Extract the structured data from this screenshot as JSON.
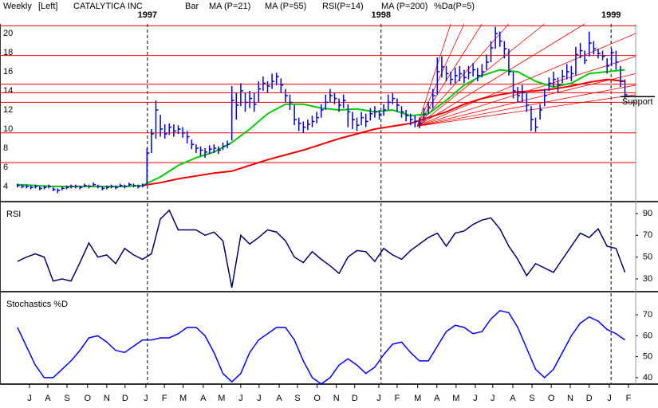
{
  "header": [
    {
      "text": "Weekly",
      "color": "#000000"
    },
    {
      "text": "[Left]",
      "color": "#000000"
    },
    {
      "text": "CATALYTICA INC",
      "color": "#000000"
    },
    {
      "text": "Bar",
      "color": "#0000cc"
    },
    {
      "text": "MA (P=21)",
      "color": "#00bb00"
    },
    {
      "text": "MA (P=55)",
      "color": "#ee0000"
    },
    {
      "text": "RSI(P=14)",
      "color": "#0000cc"
    },
    {
      "text": "MA (P=200)",
      "color": "#008800"
    },
    {
      "text": "%Da(P=5)",
      "color": "#0000cc"
    }
  ],
  "chart_data": [
    {
      "type": "ohlc",
      "xlim": [
        -3.9,
        138.4
      ],
      "ylim": [
        2.5,
        21
      ],
      "yticks": [
        4,
        6,
        8,
        10,
        12,
        14,
        16,
        18,
        20
      ],
      "year_markers": [
        {
          "value": 29.1,
          "label": "1997"
        },
        {
          "value": 81.4,
          "label": "1998"
        },
        {
          "value": 132.9,
          "label": "1999"
        }
      ],
      "levels": [
        20.8,
        17.7,
        14.7,
        13.8,
        12.8,
        9.6,
        6.5
      ],
      "level_color": "#ee0000",
      "bars": {
        "color": "#0000cc",
        "high": [
          4.3,
          4.2,
          4.2,
          4.1,
          4.2,
          4.0,
          4.1,
          4.2,
          3.9,
          3.8,
          4.0,
          4.1,
          4.2,
          4.2,
          4.1,
          4.3,
          4.2,
          4.4,
          4.2,
          4.0,
          4.1,
          4.2,
          4.1,
          4.3,
          4.2,
          4.4,
          4.3,
          4.2,
          4.3,
          8.0,
          10.0,
          13.0,
          11.5,
          10.5,
          10.6,
          10.5,
          10.4,
          10.2,
          9.8,
          8.9,
          8.4,
          8.2,
          8.0,
          8.3,
          8.4,
          8.2,
          8.6,
          8.8,
          14.5,
          13.8,
          14.8,
          13.8,
          14.0,
          13.8,
          15.0,
          15.5,
          15.0,
          15.8,
          15.9,
          15.3,
          14.2,
          13.6,
          12.5,
          11.2,
          10.8,
          11.0,
          11.4,
          11.8,
          12.6,
          13.6,
          14.2,
          13.8,
          13.2,
          13.6,
          12.6,
          11.8,
          11.2,
          11.8,
          11.6,
          12.2,
          12.4,
          12.0,
          12.6,
          13.6,
          13.8,
          13.2,
          12.4,
          12.0,
          11.6,
          11.4,
          11.2,
          12.2,
          12.8,
          14.2,
          17.5,
          17.6,
          16.6,
          16.0,
          16.4,
          16.6,
          16.2,
          16.6,
          16.9,
          16.4,
          16.8,
          17.8,
          19.2,
          20.7,
          20.2,
          19.2,
          18.4,
          16.0,
          14.4,
          14.6,
          13.8,
          12.4,
          11.2,
          12.6,
          14.2,
          15.4,
          16.0,
          15.4,
          16.2,
          16.8,
          16.6,
          18.6,
          19.0,
          18.2,
          20.2,
          19.2,
          18.4,
          18.2,
          17.4,
          18.4,
          18.2,
          16.6,
          15.2
        ],
        "low": [
          3.9,
          3.8,
          3.8,
          3.7,
          3.8,
          3.6,
          3.7,
          3.8,
          3.5,
          3.3,
          3.6,
          3.7,
          3.8,
          3.8,
          3.7,
          3.9,
          3.8,
          4.0,
          3.8,
          3.6,
          3.7,
          3.8,
          3.7,
          3.9,
          3.8,
          4.0,
          3.9,
          3.8,
          3.9,
          4.2,
          7.5,
          9.0,
          9.2,
          9.0,
          9.4,
          9.2,
          9.5,
          9.1,
          8.5,
          7.9,
          7.5,
          7.2,
          7.0,
          7.4,
          7.5,
          7.4,
          7.8,
          8.0,
          8.8,
          11.0,
          12.4,
          11.8,
          12.2,
          11.8,
          12.8,
          14.0,
          13.8,
          14.2,
          14.6,
          13.8,
          12.8,
          12.0,
          10.4,
          9.8,
          9.6,
          9.9,
          10.2,
          10.6,
          11.2,
          12.0,
          12.8,
          12.6,
          11.8,
          12.2,
          10.2,
          10.0,
          9.8,
          10.4,
          10.2,
          10.9,
          11.2,
          11.0,
          11.4,
          12.0,
          12.6,
          11.8,
          11.2,
          10.8,
          10.4,
          10.2,
          10.1,
          10.8,
          11.6,
          12.2,
          13.6,
          15.4,
          15.0,
          14.6,
          14.8,
          15.0,
          14.8,
          15.2,
          15.5,
          15.0,
          15.4,
          16.2,
          17.0,
          18.4,
          18.6,
          17.4,
          15.6,
          13.2,
          12.8,
          12.8,
          11.8,
          9.8,
          9.7,
          11.0,
          12.4,
          14.0,
          14.4,
          13.8,
          14.8,
          15.2,
          15.0,
          15.6,
          17.4,
          16.8,
          17.6,
          17.8,
          17.4,
          17.2,
          15.8,
          16.6,
          16.2,
          14.4,
          13.2
        ],
        "close": [
          4.1,
          4.0,
          4.0,
          3.9,
          4.0,
          3.8,
          3.9,
          4.0,
          3.7,
          3.6,
          3.8,
          3.9,
          4.0,
          4.0,
          3.9,
          4.1,
          4.0,
          4.2,
          4.0,
          3.8,
          3.9,
          4.0,
          3.9,
          4.1,
          4.0,
          4.2,
          4.1,
          4.0,
          4.1,
          7.5,
          9.5,
          12.0,
          10.0,
          9.5,
          10.2,
          9.8,
          10.0,
          9.6,
          9.2,
          8.4,
          8.0,
          7.8,
          7.6,
          7.9,
          8.0,
          7.8,
          8.2,
          8.4,
          13.0,
          12.5,
          14.0,
          12.8,
          13.2,
          12.6,
          14.2,
          14.8,
          14.5,
          15.0,
          15.5,
          14.6,
          13.5,
          12.8,
          11.0,
          10.6,
          10.2,
          10.5,
          10.8,
          11.2,
          12.0,
          12.8,
          13.5,
          13.2,
          12.5,
          13.0,
          11.8,
          11.0,
          10.4,
          11.2,
          10.8,
          11.6,
          11.8,
          11.5,
          12.0,
          12.8,
          13.2,
          12.5,
          11.8,
          11.4,
          11.0,
          10.8,
          10.6,
          11.5,
          12.2,
          13.5,
          16.0,
          16.5,
          15.8,
          15.2,
          15.6,
          15.8,
          15.4,
          15.9,
          16.2,
          15.6,
          16.0,
          17.0,
          18.5,
          20.0,
          19.2,
          18.4,
          16.0,
          14.0,
          13.5,
          13.8,
          12.5,
          11.0,
          10.2,
          12.0,
          13.5,
          14.8,
          15.2,
          14.6,
          15.5,
          16.0,
          15.8,
          17.8,
          18.2,
          17.2,
          19.0,
          18.4,
          17.9,
          17.6,
          16.6,
          18.0,
          17.0,
          15.0,
          13.6
        ]
      },
      "series": [
        {
          "color": "#00cc00",
          "x": [
            0,
            4,
            8,
            12,
            16,
            20,
            24,
            28,
            32,
            36,
            40,
            44,
            48,
            52,
            56,
            60,
            64,
            68,
            72,
            76,
            80,
            84,
            88,
            92,
            96,
            100,
            104,
            108,
            112,
            116,
            120,
            124,
            128,
            132,
            136
          ],
          "values": [
            4.2,
            4.1,
            4.0,
            4.0,
            4.0,
            4.0,
            4.0,
            4.1,
            5.0,
            6.2,
            7.0,
            7.6,
            8.6,
            10.0,
            11.6,
            12.6,
            12.6,
            12.2,
            12.0,
            12.1,
            11.8,
            12.0,
            11.4,
            11.6,
            13.0,
            14.6,
            15.6,
            16.2,
            16.0,
            15.0,
            14.4,
            14.8,
            15.8,
            16.0,
            16.2
          ]
        },
        {
          "color": "#ee0000",
          "x": [
            28,
            32,
            36,
            40,
            44,
            48,
            52,
            56,
            60,
            64,
            68,
            72,
            76,
            80,
            84,
            88,
            92,
            96,
            100,
            104,
            108,
            112,
            116,
            120,
            124,
            128,
            132,
            136
          ],
          "values": [
            4.1,
            4.4,
            4.8,
            5.1,
            5.4,
            5.6,
            6.2,
            6.8,
            7.3,
            7.8,
            8.4,
            9.0,
            9.5,
            10.0,
            10.3,
            10.6,
            11.2,
            11.8,
            12.6,
            13.2,
            13.6,
            13.9,
            14.0,
            14.2,
            14.5,
            14.9,
            15.2,
            15.0
          ]
        }
      ],
      "fan": {
        "color": "#ee0000",
        "origin": {
          "x": 89.5,
          "y": 10.3
        },
        "ends": [
          {
            "x": 97,
            "y": 21
          },
          {
            "x": 100,
            "y": 21
          },
          {
            "x": 104,
            "y": 21
          },
          {
            "x": 110,
            "y": 21
          },
          {
            "x": 118,
            "y": 21
          },
          {
            "x": 127,
            "y": 21
          },
          {
            "x": 138.4,
            "y": 20
          },
          {
            "x": 138.4,
            "y": 17.6
          },
          {
            "x": 138.4,
            "y": 15.8
          },
          {
            "x": 138.4,
            "y": 14.6
          },
          {
            "x": 138.4,
            "y": 13.6
          }
        ]
      },
      "support": {
        "value": 13.4,
        "start": 135,
        "label": "Support"
      }
    },
    {
      "type": "line",
      "title": "RSI",
      "xlim": [
        -3.9,
        138.4
      ],
      "ylim": [
        19,
        99.5
      ],
      "yticks": [
        30,
        50,
        70,
        90
      ],
      "color": "#000066",
      "x": [
        0,
        2,
        4,
        6,
        8,
        10,
        12,
        14,
        16,
        18,
        20,
        22,
        24,
        26,
        28,
        30,
        32,
        34,
        36,
        38,
        40,
        42,
        44,
        46,
        48,
        50,
        52,
        54,
        56,
        58,
        60,
        62,
        64,
        66,
        68,
        70,
        72,
        74,
        76,
        78,
        80,
        82,
        84,
        86,
        88,
        90,
        92,
        94,
        96,
        98,
        100,
        102,
        104,
        106,
        108,
        110,
        112,
        114,
        116,
        118,
        120,
        122,
        124,
        126,
        128,
        130,
        132,
        134,
        136
      ],
      "values": [
        46,
        50,
        53,
        50,
        28,
        30,
        28,
        45,
        63,
        50,
        52,
        44,
        58,
        52,
        48,
        53,
        85,
        93,
        75,
        75,
        75,
        70,
        73,
        65,
        22,
        70,
        62,
        68,
        75,
        73,
        65,
        50,
        45,
        55,
        48,
        42,
        35,
        50,
        56,
        55,
        46,
        58,
        52,
        48,
        56,
        62,
        68,
        72,
        60,
        72,
        74,
        80,
        84,
        86,
        76,
        60,
        48,
        33,
        44,
        40,
        36,
        48,
        60,
        72,
        68,
        76,
        60,
        58,
        36
      ]
    },
    {
      "type": "line",
      "title": "Stochastics %D",
      "xlim": [
        -3.9,
        138.4
      ],
      "ylim": [
        37.3,
        80.3
      ],
      "yticks": [
        40,
        50,
        60,
        70
      ],
      "color": "#0000ff",
      "x": [
        0,
        2,
        4,
        6,
        8,
        10,
        12,
        14,
        16,
        18,
        20,
        22,
        24,
        26,
        28,
        30,
        32,
        34,
        36,
        38,
        40,
        42,
        44,
        46,
        48,
        50,
        52,
        54,
        56,
        58,
        60,
        62,
        64,
        66,
        68,
        70,
        72,
        74,
        76,
        78,
        80,
        82,
        84,
        86,
        88,
        90,
        92,
        94,
        96,
        98,
        100,
        102,
        104,
        106,
        108,
        110,
        112,
        114,
        116,
        118,
        120,
        122,
        124,
        126,
        128,
        130,
        132,
        134,
        136
      ],
      "values": [
        64,
        55,
        46,
        40,
        40,
        44,
        48,
        53,
        59,
        60,
        57,
        53,
        52,
        55,
        58,
        58,
        59,
        59,
        61,
        64,
        64,
        60,
        52,
        42,
        38,
        42,
        52,
        58,
        61,
        64,
        64,
        58,
        48,
        40,
        37,
        40,
        46,
        49,
        46,
        42,
        45,
        51,
        56,
        57,
        52,
        48,
        48,
        55,
        62,
        65,
        64,
        61,
        62,
        68,
        72,
        71,
        64,
        54,
        44,
        40,
        44,
        52,
        60,
        66,
        69,
        67,
        63,
        61,
        58
      ],
      "xticks": [
        {
          "value": 2.7,
          "label": "J"
        },
        {
          "value": 6.8,
          "label": "A"
        },
        {
          "value": 11.1,
          "label": "S"
        },
        {
          "value": 15.7,
          "label": "O"
        },
        {
          "value": 20,
          "label": "N"
        },
        {
          "value": 24.1,
          "label": "D"
        },
        {
          "value": 28.75,
          "label": "J"
        },
        {
          "value": 32.9,
          "label": "F"
        },
        {
          "value": 37.1,
          "label": "M"
        },
        {
          "value": 41.6,
          "label": "A"
        },
        {
          "value": 45.7,
          "label": "M"
        },
        {
          "value": 50,
          "label": "J"
        },
        {
          "value": 54.1,
          "label": "J"
        },
        {
          "value": 58.6,
          "label": "A"
        },
        {
          "value": 62.7,
          "label": "S"
        },
        {
          "value": 67.1,
          "label": "O"
        },
        {
          "value": 71.4,
          "label": "N"
        },
        {
          "value": 75.5,
          "label": "D"
        },
        {
          "value": 80.9,
          "label": "J"
        },
        {
          "value": 85,
          "label": "F"
        },
        {
          "value": 89.6,
          "label": "M"
        },
        {
          "value": 93.9,
          "label": "A"
        },
        {
          "value": 98.2,
          "label": "M"
        },
        {
          "value": 102.5,
          "label": "J"
        },
        {
          "value": 106.4,
          "label": "J"
        },
        {
          "value": 110.9,
          "label": "A"
        },
        {
          "value": 115.2,
          "label": "S"
        },
        {
          "value": 119.5,
          "label": "O"
        },
        {
          "value": 123.75,
          "label": "N"
        },
        {
          "value": 128,
          "label": "D"
        },
        {
          "value": 132.5,
          "label": "J"
        },
        {
          "value": 136.8,
          "label": "F"
        }
      ]
    }
  ]
}
